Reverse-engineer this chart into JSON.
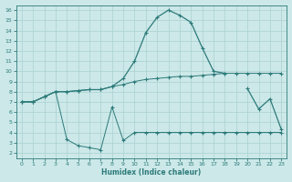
{
  "xlabel": "Humidex (Indice chaleur)",
  "x": [
    0,
    1,
    2,
    3,
    4,
    5,
    6,
    7,
    8,
    9,
    10,
    11,
    12,
    13,
    14,
    15,
    16,
    17,
    18,
    19,
    20,
    21,
    22,
    23
  ],
  "line1": [
    7.0,
    7.0,
    7.5,
    8.0,
    3.3,
    2.7,
    2.5,
    2.3,
    6.5,
    3.2,
    4.0,
    4.0,
    4.0,
    4.0,
    4.0,
    4.0,
    4.0,
    4.0,
    4.0,
    4.0,
    4.0,
    4.0,
    4.0,
    4.0
  ],
  "line2": [
    7.0,
    7.0,
    7.5,
    8.0,
    8.0,
    8.1,
    8.2,
    8.2,
    8.5,
    8.7,
    9.0,
    9.2,
    9.3,
    9.4,
    9.5,
    9.5,
    9.6,
    9.7,
    9.8,
    9.8,
    9.8,
    9.8,
    9.8,
    9.8
  ],
  "line3": [
    7.0,
    7.0,
    7.5,
    8.0,
    8.0,
    8.1,
    8.2,
    8.2,
    8.5,
    9.3,
    11.0,
    13.8,
    15.3,
    16.0,
    15.5,
    14.8,
    12.3,
    10.0,
    9.8,
    null,
    8.3,
    6.3,
    7.3,
    4.3
  ],
  "line_color": "#2d7a7a",
  "bg_color": "#cce8e8",
  "grid_color": "#aad0d0",
  "ylim": [
    1.5,
    16.5
  ],
  "xlim": [
    -0.5,
    23.5
  ],
  "yticks": [
    2,
    3,
    4,
    5,
    6,
    7,
    8,
    9,
    10,
    11,
    12,
    13,
    14,
    15,
    16
  ],
  "xticks": [
    0,
    1,
    2,
    3,
    4,
    5,
    6,
    7,
    8,
    9,
    10,
    11,
    12,
    13,
    14,
    15,
    16,
    17,
    18,
    19,
    20,
    21,
    22,
    23
  ]
}
